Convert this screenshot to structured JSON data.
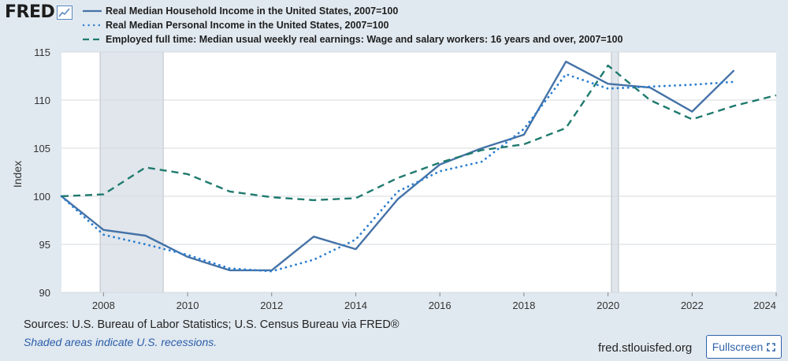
{
  "header": {
    "logo_text": "FRED",
    "logo_icon": "line-chart-icon"
  },
  "footer": {
    "sources": "Sources: U.S. Bureau of Labor Statistics; U.S. Census Bureau via FRED®",
    "note": "Shaded areas indicate U.S. recessions.",
    "url": "fred.stlouisfed.org",
    "fullscreen_label": "Fullscreen",
    "fullscreen_icon": "expand-icon"
  },
  "colors": {
    "background": "#e1e9f0",
    "plot_background": "#ffffff",
    "household": "#4572a7",
    "personal": "#2c7fd0",
    "employed": "#1f7a6e",
    "recession": "#e1e6ec",
    "link": "#2a5daa"
  },
  "chart_data": {
    "type": "line",
    "ylabel": "Index",
    "xlim": [
      2007,
      2024
    ],
    "ylim": [
      90,
      115
    ],
    "xticks": [
      "2008",
      "2010",
      "2012",
      "2014",
      "2016",
      "2018",
      "2020",
      "2022",
      "2024"
    ],
    "yticks": [
      "90",
      "95",
      "100",
      "105",
      "110",
      "115"
    ],
    "grid": "horizontal",
    "legend_position": "top",
    "recessions": [
      [
        2007.92,
        2009.42
      ],
      [
        2020.08,
        2020.25
      ]
    ],
    "series": [
      {
        "name": "Real Median Household Income in the United States, 2007=100",
        "style": "solid",
        "x": [
          2007,
          2008,
          2009,
          2010,
          2011,
          2012,
          2013,
          2014,
          2015,
          2016,
          2017,
          2018,
          2019,
          2020,
          2021,
          2022,
          2023
        ],
        "values": [
          100,
          96.5,
          95.9,
          93.7,
          92.3,
          92.3,
          95.8,
          94.5,
          99.7,
          103.3,
          105,
          106.4,
          114,
          111.7,
          111.3,
          108.8,
          113.1
        ]
      },
      {
        "name": "Real Median Personal Income in the United States, 2007=100",
        "style": "dotted",
        "x": [
          2007,
          2008,
          2009,
          2010,
          2011,
          2012,
          2013,
          2014,
          2015,
          2016,
          2017,
          2018,
          2019,
          2020,
          2021,
          2022,
          2023
        ],
        "values": [
          100,
          96,
          95,
          93.9,
          92.5,
          92.2,
          93.4,
          95.5,
          100.5,
          102.6,
          103.6,
          107,
          112.7,
          111.2,
          111.4,
          111.6,
          111.9
        ]
      },
      {
        "name": "Employed full time: Median usual weekly real earnings: Wage and salary workers: 16 years and over, 2007=100",
        "style": "dashed",
        "x": [
          2007,
          2008,
          2009,
          2010,
          2011,
          2012,
          2013,
          2014,
          2015,
          2016,
          2017,
          2018,
          2019,
          2020,
          2021,
          2022,
          2023,
          2024
        ],
        "values": [
          100,
          100.2,
          103,
          102.3,
          100.5,
          99.9,
          99.6,
          99.8,
          101.9,
          103.5,
          104.8,
          105.4,
          107.1,
          113.6,
          110,
          108,
          109.4,
          110.5
        ]
      }
    ]
  }
}
